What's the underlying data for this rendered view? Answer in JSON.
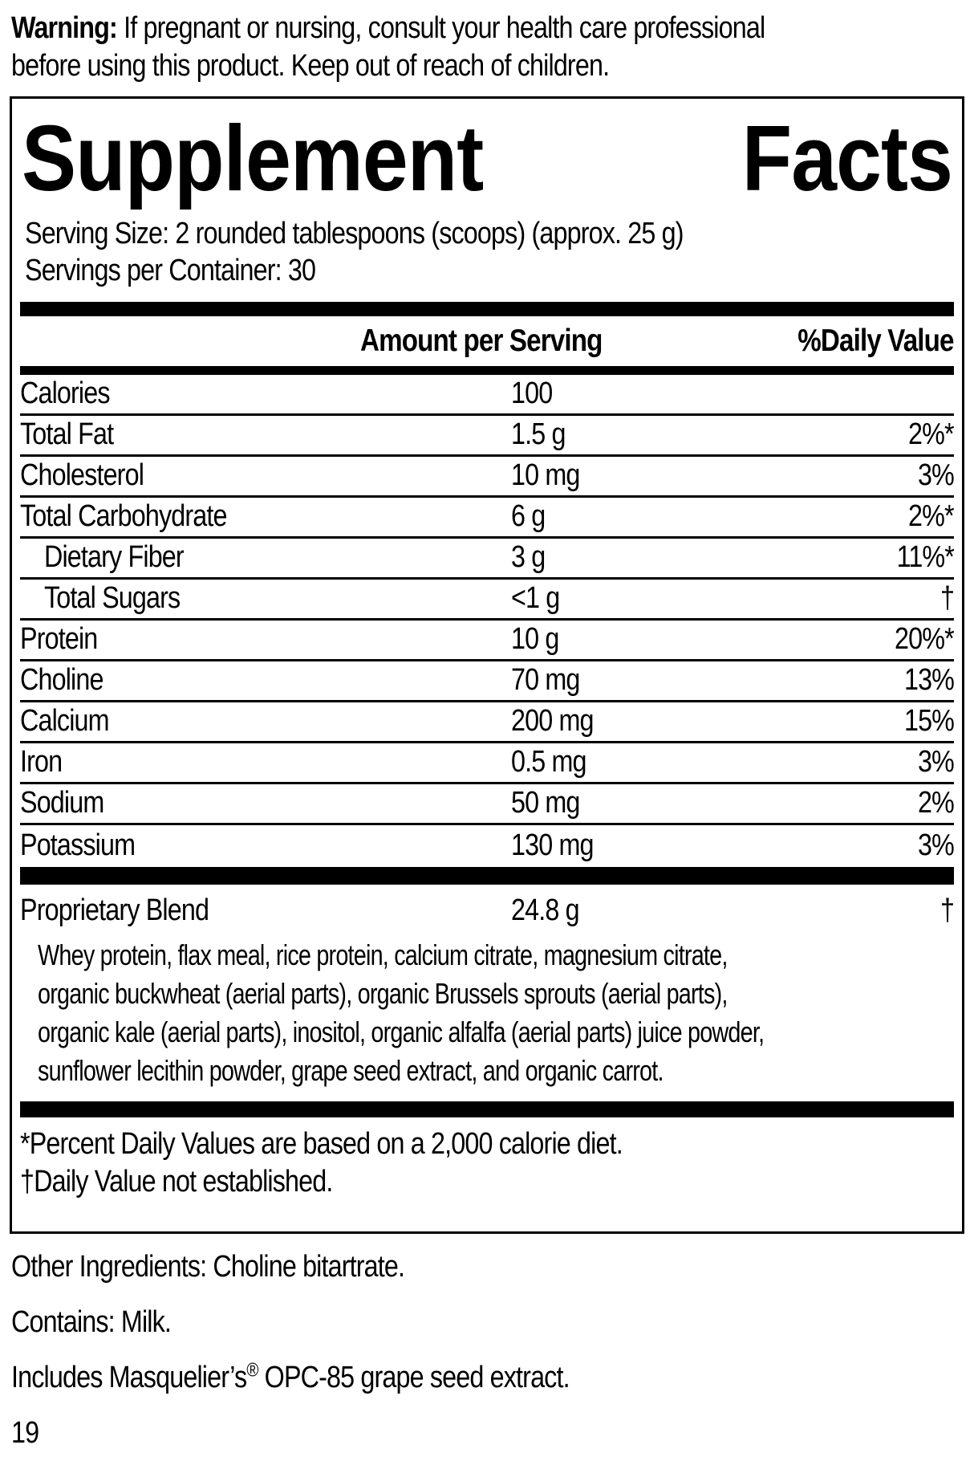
{
  "colors": {
    "background": "#ffffff",
    "text": "#000000"
  },
  "warning": {
    "label": "Warning:",
    "line1": "If pregnant or nursing, consult your health care professional",
    "line2": "before using this product. Keep out of reach of children."
  },
  "panel": {
    "title_word1": "Supplement",
    "title_word2": "Facts",
    "serving_size": "Serving Size: 2 rounded tablespoons (scoops) (approx. 25 g)",
    "servings_per_container": "Servings per Container: 30",
    "columns": {
      "amount": "Amount per Serving",
      "daily_value": "%Daily Value"
    },
    "rows": [
      {
        "name": "Calories",
        "amount": "100",
        "dv": ""
      },
      {
        "name": "Total Fat",
        "amount": "1.5 g",
        "dv": "2%*"
      },
      {
        "name": "Cholesterol",
        "amount": "10 mg",
        "dv": "3%"
      },
      {
        "name": "Total Carbohydrate",
        "amount": "6 g",
        "dv": "2%*"
      },
      {
        "name": "Dietary Fiber",
        "amount": "3 g",
        "dv": "11%*"
      },
      {
        "name": "Total Sugars",
        "amount": "<1 g",
        "dv": "†"
      },
      {
        "name": "Protein",
        "amount": "10 g",
        "dv": "20%*"
      },
      {
        "name": "Choline",
        "amount": "70 mg",
        "dv": "13%"
      },
      {
        "name": "Calcium",
        "amount": "200 mg",
        "dv": "15%"
      },
      {
        "name": "Iron",
        "amount": "0.5 mg",
        "dv": "3%"
      },
      {
        "name": "Sodium",
        "amount": "50 mg",
        "dv": "2%"
      },
      {
        "name": "Potassium",
        "amount": "130 mg",
        "dv": "3%"
      }
    ],
    "blend": {
      "name": "Proprietary Blend",
      "amount": "24.8 g",
      "dv": "†",
      "description_lines": [
        "Whey protein, flax meal, rice protein, calcium citrate, magnesium citrate,",
        "organic buckwheat (aerial parts), organic Brussels sprouts (aerial parts),",
        "organic kale (aerial parts), inositol, organic alfalfa (aerial parts) juice powder,",
        "sunflower lecithin powder, grape seed extract, and organic carrot."
      ]
    },
    "footnotes": [
      "*Percent Daily Values are based on a 2,000 calorie diet.",
      "†Daily Value not established."
    ]
  },
  "other_ingredients": "Other Ingredients: Choline bitartrate.",
  "contains": "Contains: Milk.",
  "includes": {
    "pre": "Includes Masquelier’s",
    "reg": "®",
    "post": "OPC-85 grape seed extract."
  },
  "page_number": "19"
}
